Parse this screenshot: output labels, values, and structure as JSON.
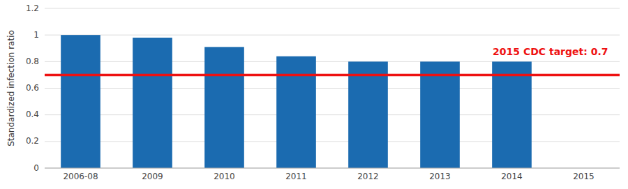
{
  "chart_data": {
    "type": "bar",
    "categories": [
      "2006-08",
      "2009",
      "2010",
      "2011",
      "2012",
      "2013",
      "2014",
      "2015"
    ],
    "values": [
      1.0,
      0.98,
      0.91,
      0.84,
      0.8,
      0.8,
      0.8,
      null
    ],
    "color": "#1b6bb0",
    "ylabel": "Standardized infection ratio",
    "ylim": [
      0,
      1.2
    ],
    "yticks": [
      0,
      0.2,
      0.4,
      0.6,
      0.8,
      1,
      1.2
    ],
    "grid": true,
    "target": {
      "value": 0.7,
      "label": "2015 CDC target: 0.7",
      "color": "#ee1111"
    }
  }
}
